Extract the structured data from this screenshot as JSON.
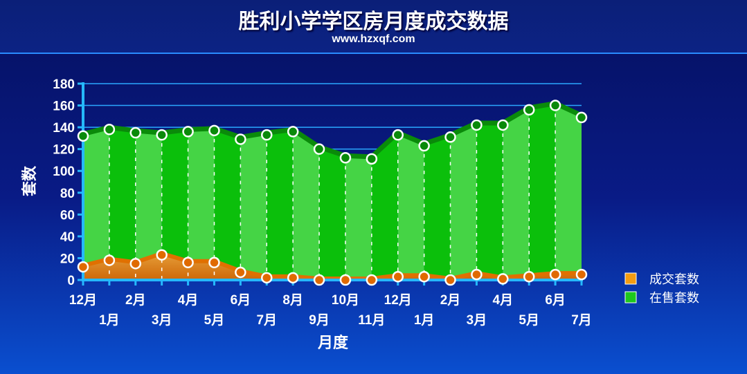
{
  "title": "胜利小学学区房月度成交数据",
  "subtitle": "www.hzxqf.com",
  "chart_data": {
    "type": "area",
    "title": "胜利小学学区房月度成交数据",
    "subtitle": "www.hzxqf.com",
    "xlabel": "月度",
    "ylabel": "套数",
    "ylim": [
      0,
      180
    ],
    "yticks": [
      0,
      20,
      40,
      60,
      80,
      100,
      120,
      140,
      160,
      180
    ],
    "grid": true,
    "legend_position": "right",
    "categories": [
      "12月",
      "1月",
      "2月",
      "3月",
      "4月",
      "5月",
      "6月",
      "7月",
      "8月",
      "9月",
      "10月",
      "11月",
      "12月",
      "1月",
      "2月",
      "3月",
      "4月",
      "5月",
      "6月",
      "7月"
    ],
    "series": [
      {
        "name": "成交套数",
        "color": "#f39c12",
        "values": [
          12,
          18,
          15,
          23,
          16,
          16,
          7,
          2,
          2,
          0,
          0,
          0,
          3,
          3,
          0,
          5,
          1,
          3,
          5,
          5
        ]
      },
      {
        "name": "在售套数",
        "color": "#1ec81e",
        "values": [
          132,
          138,
          135,
          133,
          136,
          137,
          129,
          133,
          136,
          120,
          112,
          111,
          133,
          123,
          131,
          142,
          142,
          156,
          160,
          149
        ]
      }
    ]
  }
}
